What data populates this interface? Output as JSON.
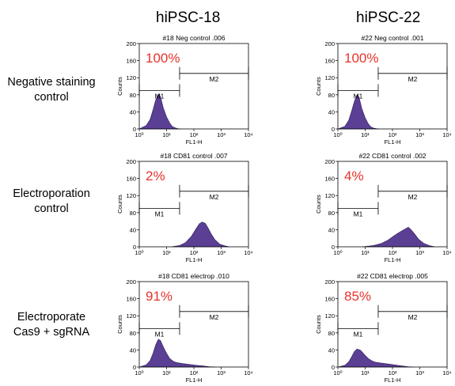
{
  "columns": [
    "hiPSC-18",
    "hiPSC-22"
  ],
  "rows": [
    {
      "lines": [
        "Negative staining",
        "control"
      ]
    },
    {
      "lines": [
        "Electroporation",
        "control"
      ]
    },
    {
      "lines": [
        "Electroporate",
        "Cas9 + sgRNA"
      ]
    }
  ],
  "colors": {
    "histogram": "#5b3f95",
    "percent": "#e8322b"
  },
  "chart_data": [
    {
      "type": "area",
      "title": "#18 Neg control .006",
      "percent": "100%",
      "xlabel": "FL1-H",
      "ylabel": "Counts",
      "xscale": "log",
      "xlim": [
        1,
        10000
      ],
      "ylim": [
        0,
        200
      ],
      "yticks": [
        0,
        40,
        80,
        120,
        160,
        200
      ],
      "xticks": [
        "10⁰",
        "10¹",
        "10²",
        "10³",
        "10⁴"
      ],
      "gates": [
        {
          "name": "M1",
          "x": [
            1,
            30
          ],
          "y": 90
        },
        {
          "name": "M2",
          "x": [
            30,
            10000
          ],
          "y": 130
        }
      ],
      "x": [
        1,
        1.8,
        2.5,
        3.2,
        4,
        5,
        6,
        7.5,
        10,
        13,
        16,
        20,
        25,
        32
      ],
      "y": [
        0,
        8,
        22,
        45,
        68,
        82,
        76,
        50,
        28,
        14,
        6,
        3,
        1,
        0
      ]
    },
    {
      "type": "area",
      "title": "#22 Neg control .001",
      "percent": "100%",
      "xlabel": "FL1-H",
      "ylabel": "Counts",
      "xscale": "log",
      "xlim": [
        1,
        10000
      ],
      "ylim": [
        0,
        200
      ],
      "yticks": [
        0,
        40,
        80,
        120,
        160,
        200
      ],
      "xticks": [
        "10⁰",
        "10¹",
        "10²",
        "10³",
        "10⁴"
      ],
      "gates": [
        {
          "name": "M1",
          "x": [
            1,
            30
          ],
          "y": 90
        },
        {
          "name": "M2",
          "x": [
            30,
            10000
          ],
          "y": 130
        }
      ],
      "x": [
        1,
        1.8,
        2.5,
        3.2,
        4,
        5,
        6,
        7.5,
        10,
        13,
        16,
        20,
        25,
        32
      ],
      "y": [
        0,
        6,
        20,
        42,
        64,
        80,
        74,
        48,
        26,
        12,
        5,
        2,
        1,
        0
      ]
    },
    {
      "type": "area",
      "title": "#18 CD81 control .007",
      "percent": "2%",
      "xlabel": "FL1-H",
      "ylabel": "Counts",
      "xscale": "log",
      "xlim": [
        1,
        10000
      ],
      "ylim": [
        0,
        200
      ],
      "yticks": [
        0,
        40,
        80,
        120,
        160,
        200
      ],
      "xticks": [
        "10⁰",
        "10¹",
        "10²",
        "10³",
        "10⁴"
      ],
      "gates": [
        {
          "name": "M1",
          "x": [
            1,
            30
          ],
          "y": 90
        },
        {
          "name": "M2",
          "x": [
            30,
            10000
          ],
          "y": 130
        }
      ],
      "x": [
        15,
        30,
        50,
        80,
        120,
        160,
        200,
        260,
        330,
        430,
        600,
        900,
        1400,
        2000
      ],
      "y": [
        0,
        3,
        10,
        24,
        42,
        54,
        58,
        55,
        44,
        30,
        16,
        6,
        2,
        0
      ]
    },
    {
      "type": "area",
      "title": "#22 CD81 control .002",
      "percent": "4%",
      "xlabel": "FL1-H",
      "ylabel": "Counts",
      "xscale": "log",
      "xlim": [
        1,
        10000
      ],
      "ylim": [
        0,
        200
      ],
      "yticks": [
        0,
        40,
        80,
        120,
        160,
        200
      ],
      "xticks": [
        "10⁰",
        "10¹",
        "10²",
        "10³",
        "10⁴"
      ],
      "gates": [
        {
          "name": "M1",
          "x": [
            1,
            30
          ],
          "y": 90
        },
        {
          "name": "M2",
          "x": [
            30,
            10000
          ],
          "y": 130
        }
      ],
      "x": [
        8,
        20,
        40,
        70,
        110,
        160,
        230,
        300,
        380,
        480,
        650,
        900,
        1400,
        2200,
        3500
      ],
      "y": [
        0,
        3,
        8,
        16,
        25,
        32,
        38,
        42,
        46,
        40,
        30,
        18,
        8,
        3,
        0
      ]
    },
    {
      "type": "area",
      "title": "#18 CD81 electrop .010",
      "percent": "91%",
      "xlabel": "FL1-H",
      "ylabel": "Counts",
      "xscale": "log",
      "xlim": [
        1,
        10000
      ],
      "ylim": [
        0,
        200
      ],
      "yticks": [
        0,
        40,
        80,
        120,
        160,
        200
      ],
      "xticks": [
        "10⁰",
        "10¹",
        "10²",
        "10³",
        "10⁴"
      ],
      "gates": [
        {
          "name": "M1",
          "x": [
            1,
            30
          ],
          "y": 90
        },
        {
          "name": "M2",
          "x": [
            30,
            10000
          ],
          "y": 130
        }
      ],
      "x": [
        1,
        1.8,
        2.5,
        3.2,
        4,
        5,
        6,
        7.5,
        10,
        13,
        18,
        25,
        40,
        70,
        120,
        200,
        350,
        600
      ],
      "y": [
        0,
        5,
        15,
        32,
        52,
        65,
        62,
        48,
        32,
        20,
        13,
        10,
        8,
        6,
        4,
        3,
        1,
        0
      ]
    },
    {
      "type": "area",
      "title": "#22 CD81 electrop .005",
      "percent": "85%",
      "xlabel": "FL1-H",
      "ylabel": "Counts",
      "xscale": "log",
      "xlim": [
        1,
        10000
      ],
      "ylim": [
        0,
        200
      ],
      "yticks": [
        0,
        40,
        80,
        120,
        160,
        200
      ],
      "xticks": [
        "10⁰",
        "10¹",
        "10²",
        "10³",
        "10⁴"
      ],
      "gates": [
        {
          "name": "M1",
          "x": [
            1,
            30
          ],
          "y": 90
        },
        {
          "name": "M2",
          "x": [
            30,
            10000
          ],
          "y": 130
        }
      ],
      "x": [
        1,
        1.8,
        2.5,
        3.2,
        4,
        5,
        6.5,
        8,
        10,
        13,
        18,
        25,
        40,
        70,
        120,
        200,
        350,
        600
      ],
      "y": [
        0,
        4,
        12,
        24,
        36,
        42,
        40,
        34,
        27,
        20,
        14,
        11,
        9,
        7,
        5,
        3,
        1,
        0
      ]
    }
  ]
}
